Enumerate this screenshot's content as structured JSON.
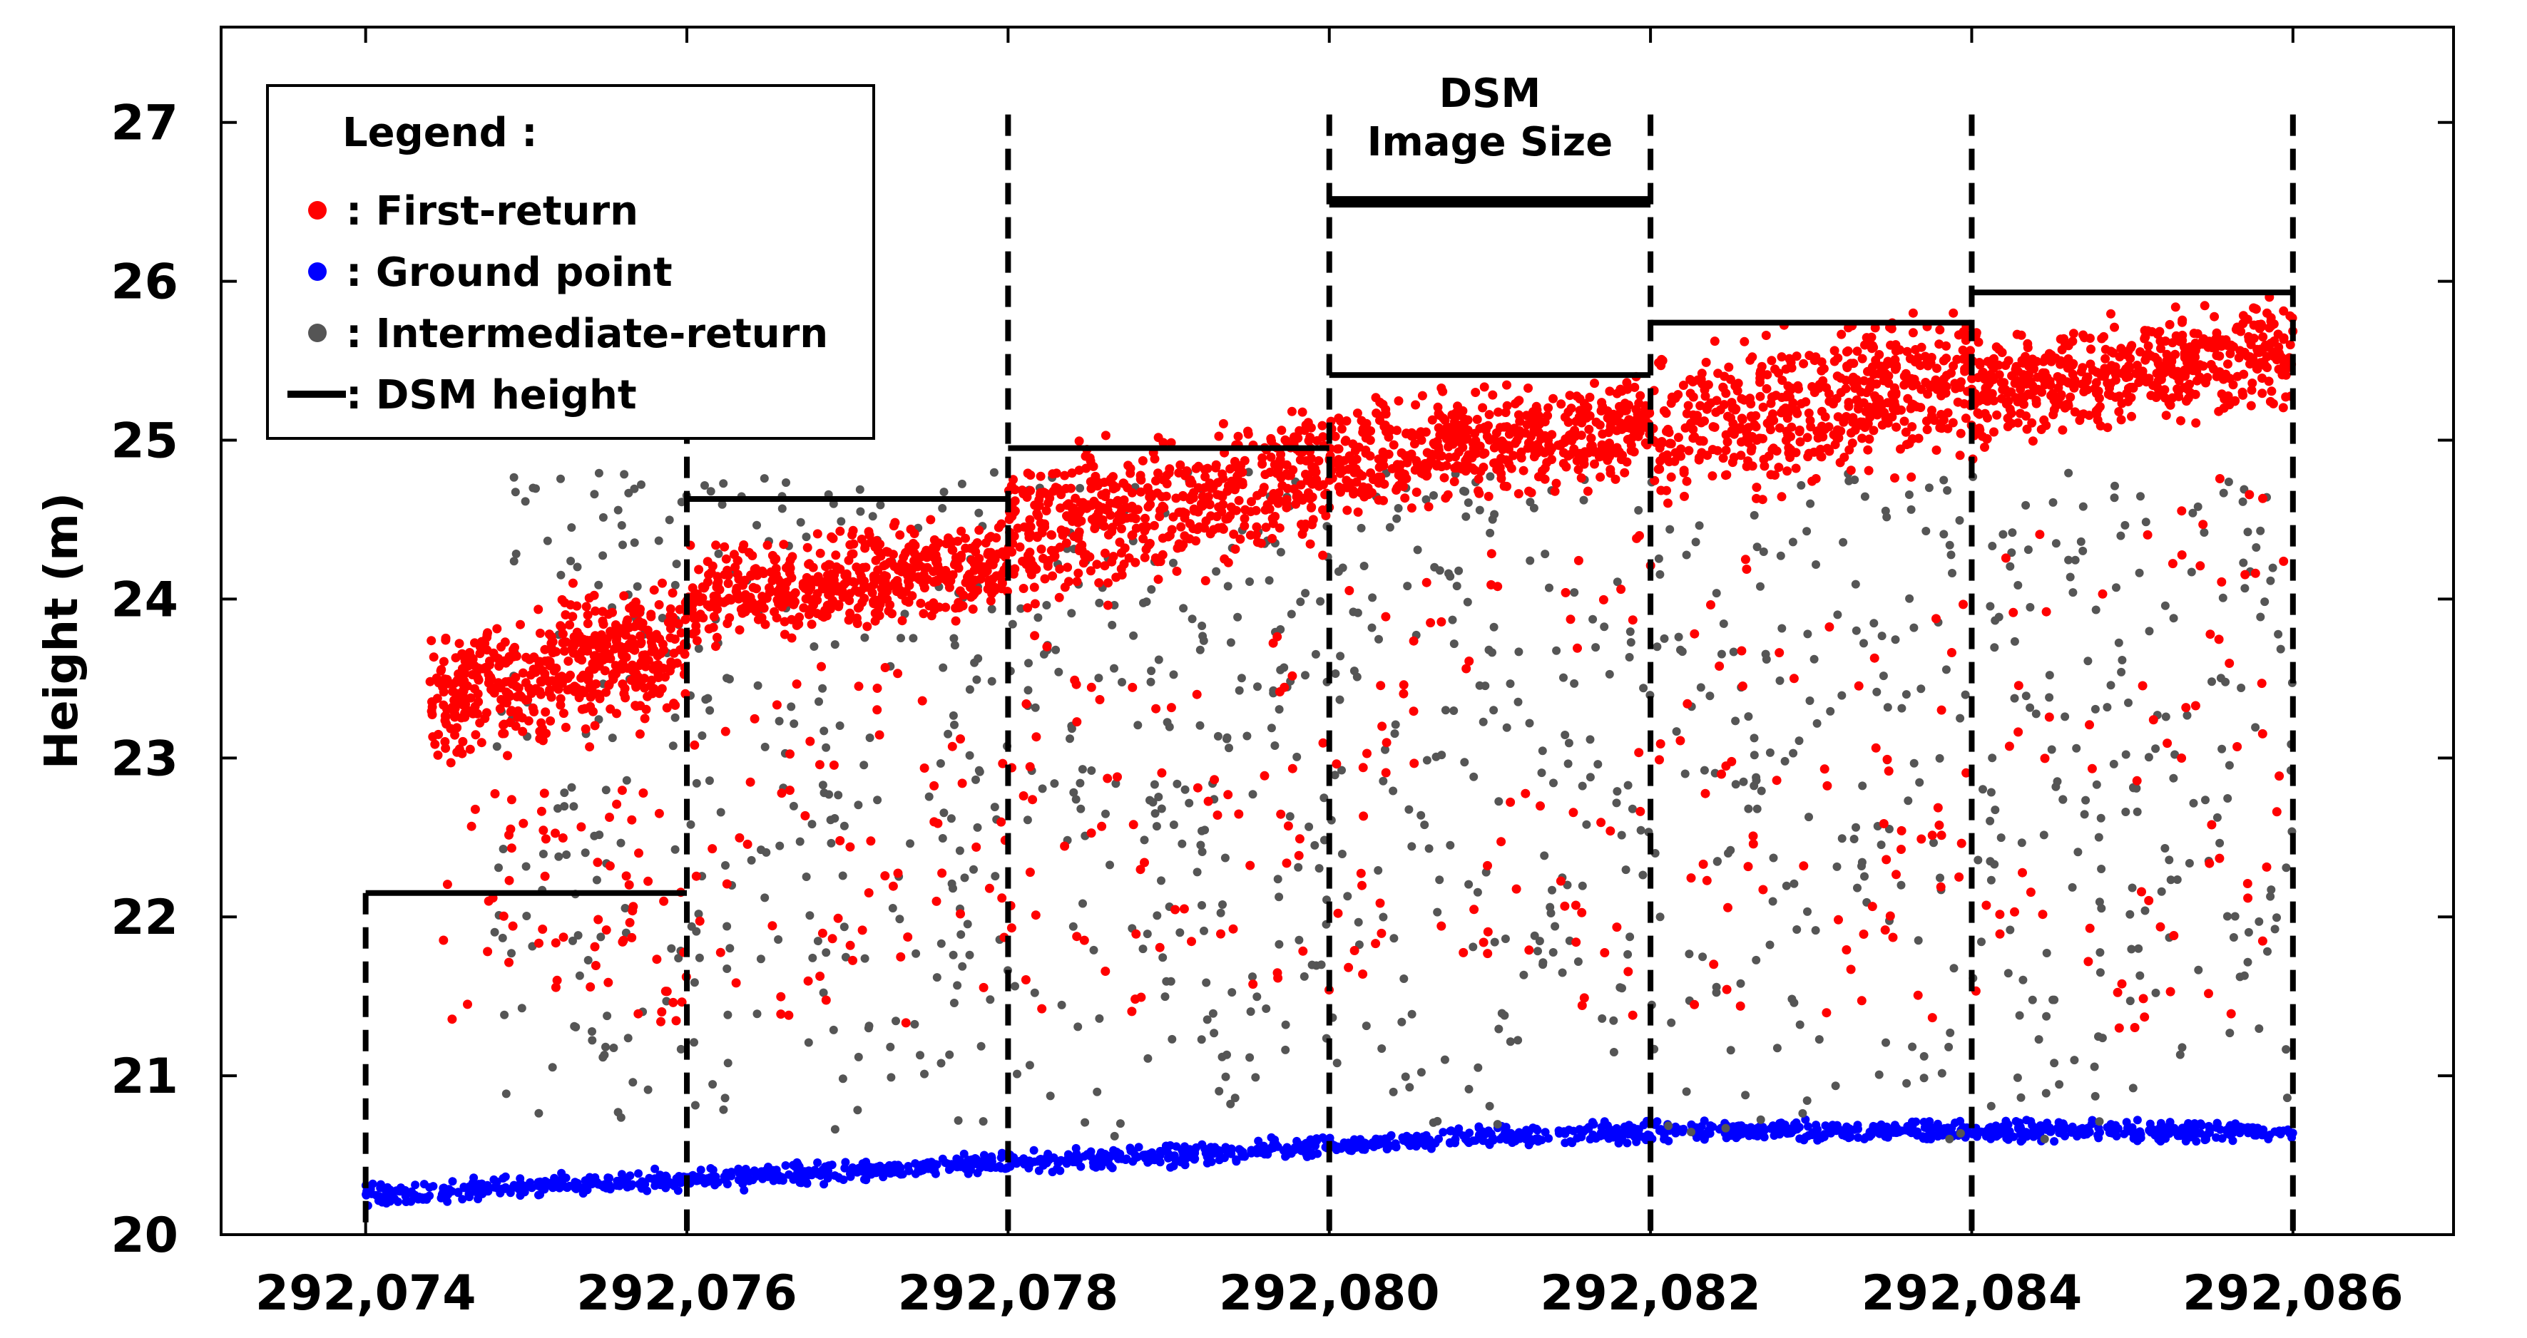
{
  "chart_data": {
    "type": "scatter",
    "ylabel": "Height (m)",
    "xlabel": "",
    "xlim": [
      292073.1,
      292087.0
    ],
    "ylim": [
      20,
      27.6
    ],
    "x_ticks": [
      292074,
      292076,
      292078,
      292080,
      292082,
      292084,
      292086
    ],
    "x_tick_labels": [
      "292,074",
      "292,076",
      "292,078",
      "292,080",
      "292,082",
      "292,084",
      "292,086"
    ],
    "y_ticks": [
      20,
      21,
      22,
      23,
      24,
      25,
      26,
      27
    ],
    "y_tick_labels": [
      "20",
      "21",
      "22",
      "23",
      "24",
      "25",
      "26",
      "27"
    ],
    "grid": false,
    "legend_position": "top-left",
    "legend": {
      "title": "Legend :",
      "entries": [
        {
          "marker": "red-dot-icon",
          "label": ": First-return",
          "color": "#ff0000"
        },
        {
          "marker": "blue-dot-icon",
          "label": ": Ground point",
          "color": "#0000ff"
        },
        {
          "marker": "gray-dot-icon",
          "label": ": Intermediate-return",
          "color": "#555555"
        },
        {
          "marker": "black-line-icon",
          "label": ": DSM height",
          "color": "#000000"
        }
      ]
    },
    "cell_boundaries": [
      292074,
      292076,
      292078,
      292080,
      292082,
      292084,
      292086
    ],
    "annotation": {
      "lines": [
        "DSM",
        "Image Size"
      ],
      "span": [
        292080,
        292082
      ],
      "y": 26.5
    },
    "series": [
      {
        "name": "First-return",
        "color": "#ff0000",
        "scatter_density": "dense",
        "top_band_by_cell": [
          {
            "x": [
              292074.4,
              292076.0
            ],
            "y_range": [
              22.8,
              24.1
            ]
          },
          {
            "x": [
              292076.0,
              292078.0
            ],
            "y_range": [
              23.6,
              24.5
            ]
          },
          {
            "x": [
              292078.0,
              292080.0
            ],
            "y_range": [
              23.8,
              25.2
            ]
          },
          {
            "x": [
              292080.0,
              292082.0
            ],
            "y_range": [
              24.4,
              25.4
            ]
          },
          {
            "x": [
              292082.0,
              292084.0
            ],
            "y_range": [
              24.4,
              25.8
            ]
          },
          {
            "x": [
              292084.0,
              292086.0
            ],
            "y_range": [
              24.8,
              25.9
            ]
          }
        ]
      },
      {
        "name": "Ground point",
        "color": "#0000ff",
        "scatter_density": "dense",
        "trend": [
          [
            292074,
            20.25
          ],
          [
            292076,
            20.35
          ],
          [
            292078,
            20.45
          ],
          [
            292080,
            20.55
          ],
          [
            292081,
            20.62
          ],
          [
            292082,
            20.65
          ],
          [
            292084,
            20.65
          ],
          [
            292086,
            20.65
          ]
        ]
      },
      {
        "name": "Intermediate-return",
        "color": "#555555",
        "scatter_density": "sparse",
        "y_range": [
          20.6,
          24.8
        ]
      },
      {
        "name": "DSM height",
        "color": "#000000",
        "type": "step",
        "segments": [
          {
            "x": [
              292074,
              292076
            ],
            "y": 22.15
          },
          {
            "x": [
              292076,
              292078
            ],
            "y": 24.63
          },
          {
            "x": [
              292078,
              292080
            ],
            "y": 24.95
          },
          {
            "x": [
              292080,
              292082
            ],
            "y": 25.41
          },
          {
            "x": [
              292082,
              292084
            ],
            "y": 25.74
          },
          {
            "x": [
              292084,
              292086
            ],
            "y": 25.93
          }
        ]
      }
    ]
  }
}
